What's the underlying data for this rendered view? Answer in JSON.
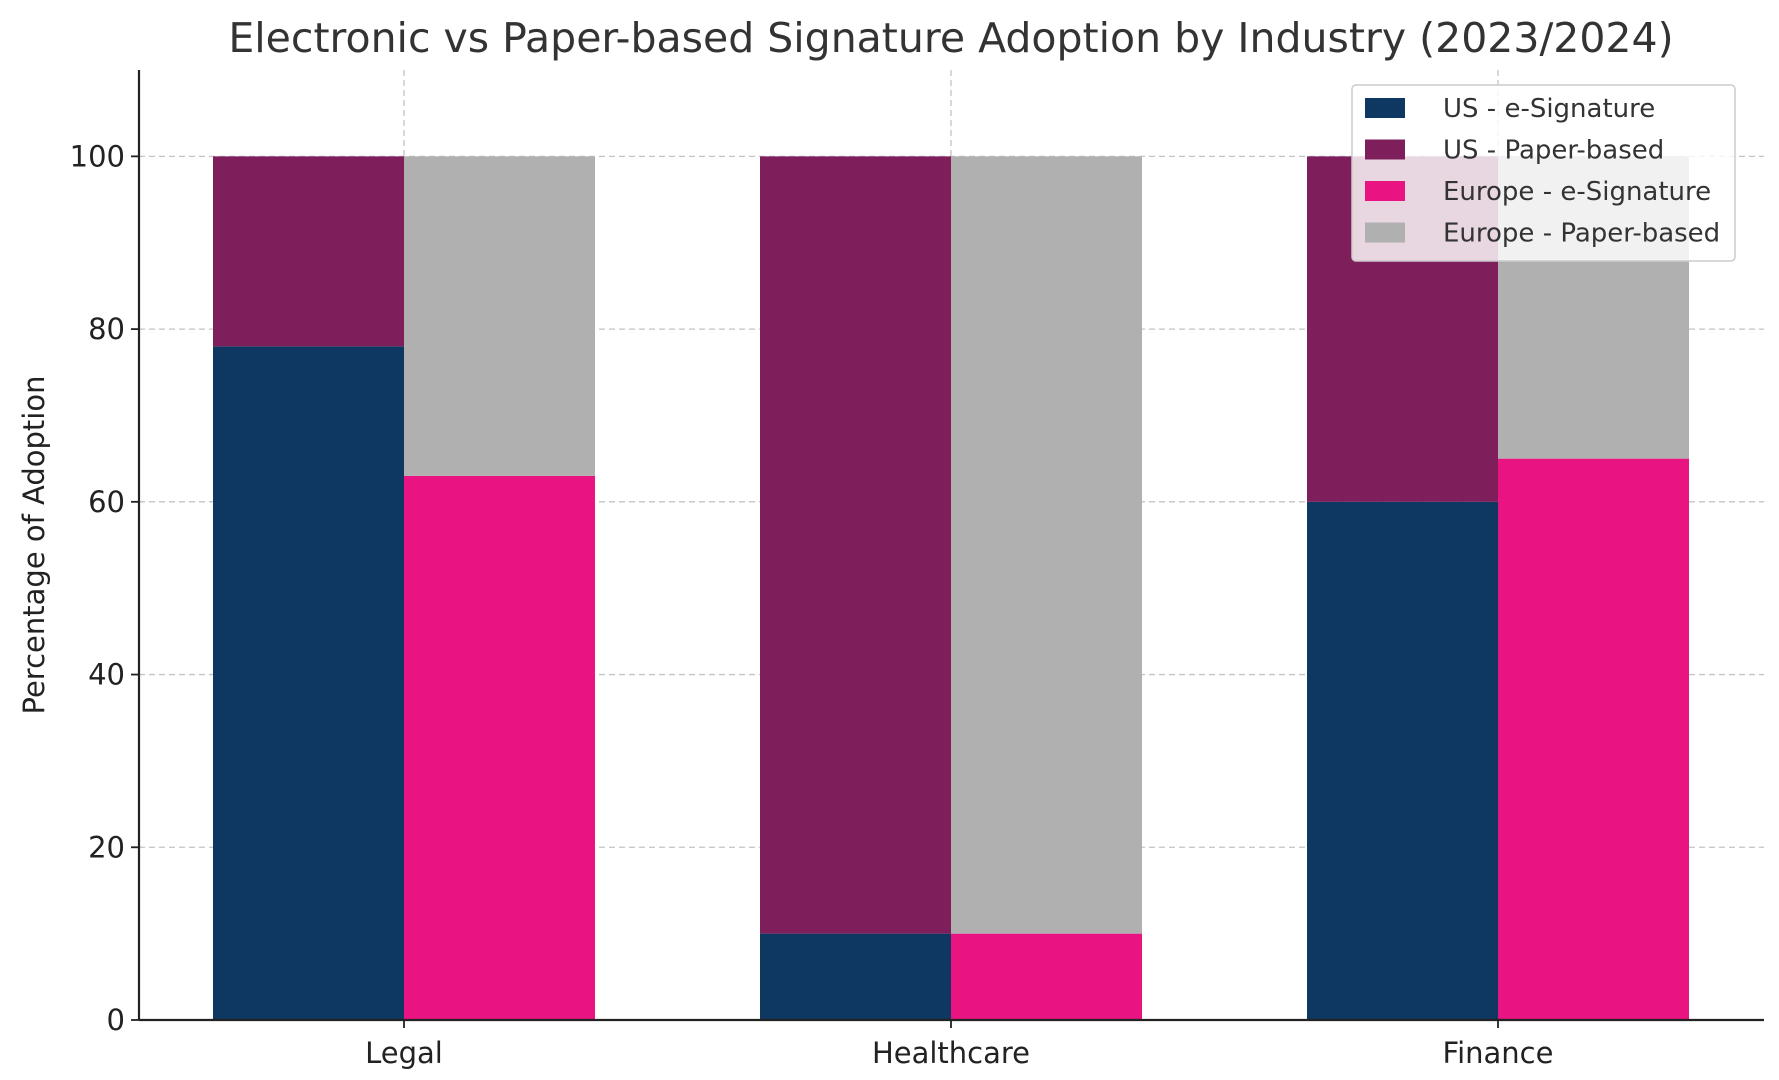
{
  "chart_data": {
    "type": "bar",
    "stacked": true,
    "grouped": true,
    "title": "Electronic vs Paper-based Signature Adoption by Industry (2023/2024)",
    "xlabel": "",
    "ylabel": "Percentage of Adoption",
    "categories": [
      "Legal",
      "Healthcare",
      "Finance"
    ],
    "ylim": [
      0,
      110
    ],
    "yticks": [
      0,
      20,
      40,
      60,
      80,
      100
    ],
    "grid": true,
    "legend_position": "top-right",
    "series": [
      {
        "name": "US - e-Signature",
        "group": "US",
        "color": "#0e3761",
        "values": [
          78,
          10,
          60
        ]
      },
      {
        "name": "US - Paper-based",
        "group": "US",
        "color": "#7e1f5c",
        "values": [
          22,
          90,
          40
        ]
      },
      {
        "name": "Europe - e-Signature",
        "group": "Europe",
        "color": "#e91382",
        "values": [
          63,
          10,
          65
        ]
      },
      {
        "name": "Europe - Paper-based",
        "group": "Europe",
        "color": "#b0b0b0",
        "values": [
          37,
          90,
          35
        ]
      }
    ]
  }
}
